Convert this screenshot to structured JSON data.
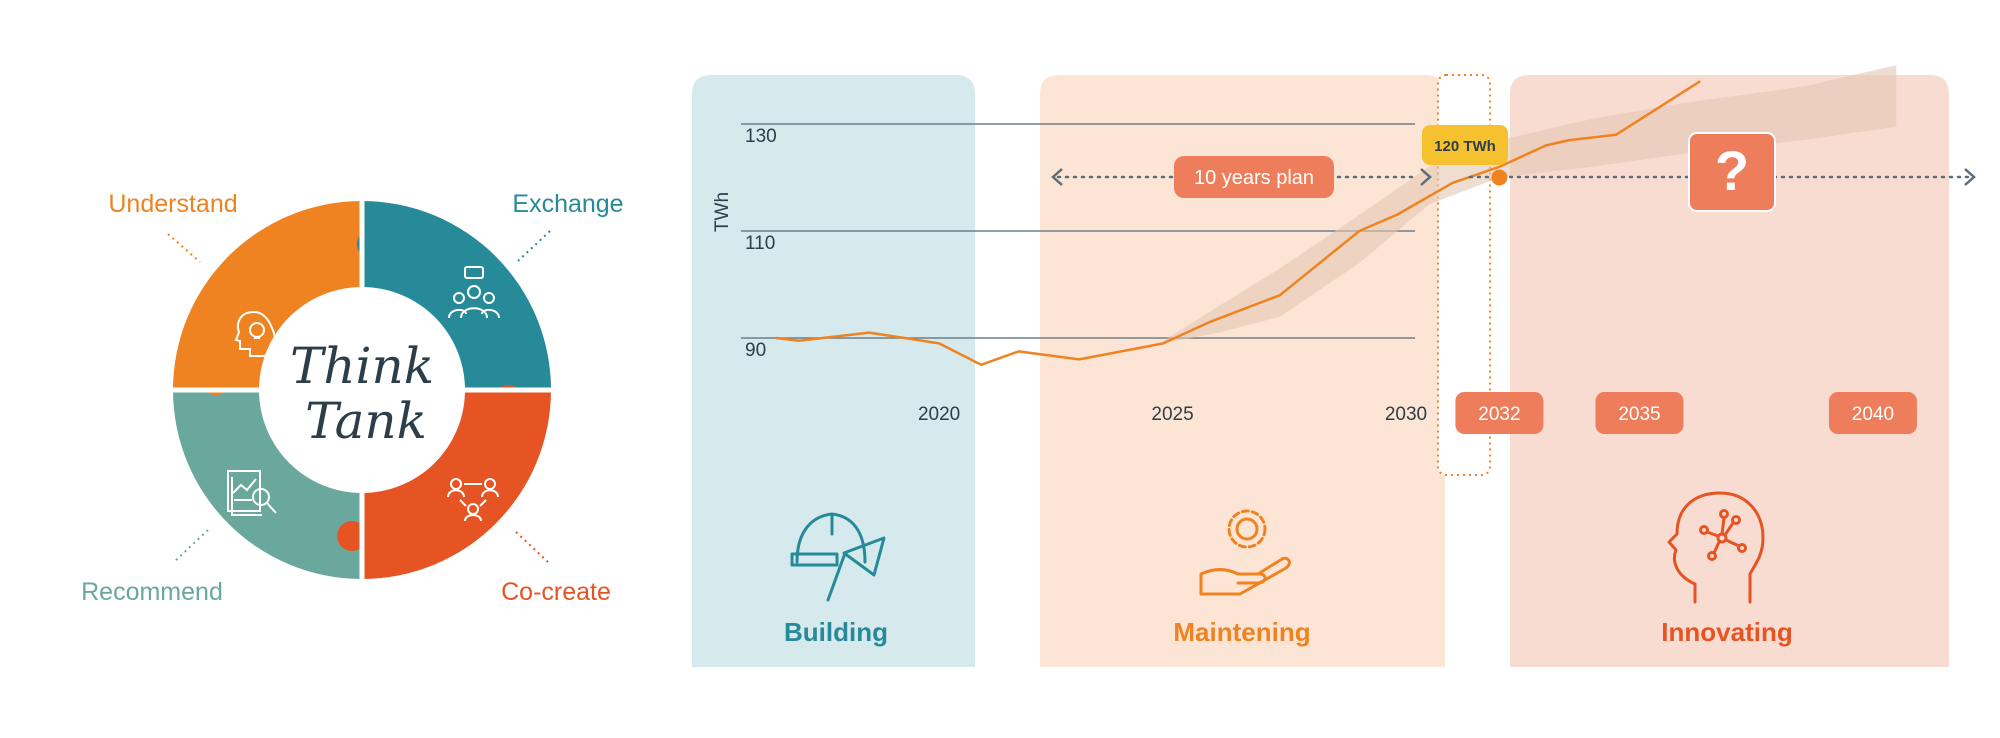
{
  "colors": {
    "orange": "#EF8321",
    "teal": "#268A98",
    "sage": "#6AA89E",
    "red_orange": "#E55422",
    "salmon": "#EE7D5C",
    "yellow": "#F6C12E",
    "dark": "#2C3E4A",
    "building_bg": "#D6E9ED",
    "maintening_bg": "#FDE5D5",
    "innovating_bg": "#F9DCD1",
    "projection_band": "#E4C6B2"
  },
  "think_tank": {
    "title_line1": "Think",
    "title_line2": "Tank",
    "segments": [
      {
        "label": "Understand",
        "icon": "lightbulb-head-icon",
        "color": "#EF8321"
      },
      {
        "label": "Exchange",
        "icon": "group-chat-icon",
        "color": "#268A98"
      },
      {
        "label": "Co-create",
        "icon": "people-network-icon",
        "color": "#E55422"
      },
      {
        "label": "Recommend",
        "icon": "report-search-icon",
        "color": "#6AA89E"
      }
    ]
  },
  "phases": [
    {
      "label": "Building",
      "icon": "helmet-trowel-icon",
      "color": "#268A98"
    },
    {
      "label": "Maintening",
      "icon": "gear-hand-icon",
      "color": "#EF8321"
    },
    {
      "label": "Innovating",
      "icon": "brain-head-icon",
      "color": "#E55422"
    }
  ],
  "plan_label": "10 years plan",
  "question_mark": "?",
  "highlight_label": "120 TWh",
  "chart_data": {
    "type": "line",
    "ylabel": "TWh",
    "yticks": [
      90,
      110,
      130
    ],
    "ylim": [
      79,
      135
    ],
    "xlim": [
      2016.4,
      2043
    ],
    "xticks": [
      2020,
      2025,
      2030
    ],
    "future_xticks": [
      2032,
      2035,
      2040
    ],
    "series": [
      {
        "x": [
          2016.5,
          2017,
          2018.5,
          2020,
          2020.9,
          2021.7,
          2023,
          2024.8,
          2025.8,
          2027.3,
          2029,
          2029.8,
          2031,
          2032,
          2033,
          2033.5,
          2034.5,
          2036.3
        ],
        "y": [
          90,
          89.5,
          91,
          89,
          85,
          87.5,
          86,
          89,
          93,
          98,
          110,
          113,
          119,
          122,
          126,
          127,
          128,
          138
        ]
      }
    ],
    "band": {
      "x": [
        2024.8,
        2026,
        2027.3,
        2029,
        2030.5,
        2032,
        2034,
        2036,
        2038.5,
        2040.5
      ],
      "upper": [
        89.5,
        96,
        103,
        113,
        122,
        127,
        131,
        134,
        137,
        141
      ],
      "lower": [
        89,
        91,
        94,
        104,
        115,
        120,
        122,
        124.5,
        127,
        129.5
      ]
    },
    "highlight": {
      "x": 2032,
      "y": 120
    }
  }
}
